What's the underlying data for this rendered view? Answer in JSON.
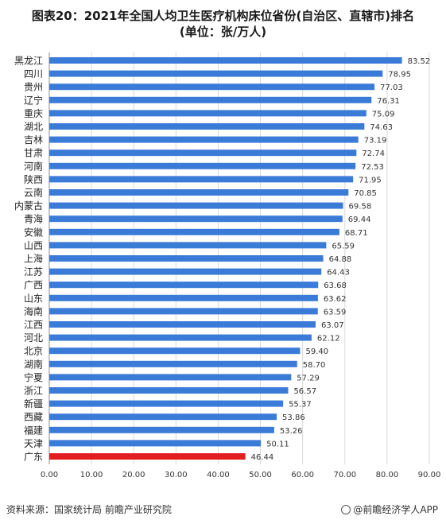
{
  "title_line1": "图表20：2021年全国人均卫生医疗机构床位省份(自治区、直辖市)排名",
  "title_line2": "(单位：张/万人)",
  "footer": {
    "source": "资料来源：国家统计局 前瞻产业研究院",
    "brand": "@前瞻经济学人APP"
  },
  "chart_data": {
    "type": "bar",
    "orientation": "horizontal",
    "title": "图表20：2021年全国人均卫生医疗机构床位省份(自治区、直辖市)排名",
    "subtitle": "(单位：张/万人)",
    "xlabel": "",
    "ylabel": "",
    "xlim": [
      0,
      90
    ],
    "x_ticks": [
      "0.00",
      "10.00",
      "20.00",
      "30.00",
      "40.00",
      "50.00",
      "60.00",
      "70.00",
      "80.00",
      "90.00"
    ],
    "grid": "vertical",
    "categories": [
      "黑龙江",
      "四川",
      "贵州",
      "辽宁",
      "重庆",
      "湖北",
      "吉林",
      "甘肃",
      "河南",
      "陕西",
      "云南",
      "内蒙古",
      "青海",
      "安徽",
      "山西",
      "上海",
      "江苏",
      "广西",
      "山东",
      "海南",
      "江西",
      "河北",
      "北京",
      "湖南",
      "宁夏",
      "浙江",
      "新疆",
      "西藏",
      "福建",
      "天津",
      "广东"
    ],
    "values": [
      83.52,
      78.95,
      77.03,
      76.31,
      75.09,
      74.63,
      73.19,
      72.74,
      72.53,
      71.95,
      70.85,
      69.58,
      69.44,
      68.71,
      65.59,
      64.88,
      64.43,
      63.68,
      63.62,
      63.59,
      63.07,
      62.12,
      59.4,
      58.7,
      57.29,
      56.57,
      55.37,
      53.86,
      53.26,
      50.11,
      46.44
    ],
    "value_labels": [
      "83.52",
      "78.95",
      "77.03",
      "76.31",
      "75.09",
      "74.63",
      "73.19",
      "72.74",
      "72.53",
      "71.95",
      "70.85",
      "69.58",
      "69.44",
      "68.71",
      "65.59",
      "64.88",
      "64.43",
      "63.68",
      "63.62",
      "63.59",
      "63.07",
      "62.12",
      "59.40",
      "58.70",
      "57.29",
      "56.57",
      "55.37",
      "53.86",
      "53.26",
      "50.11",
      "46.44"
    ],
    "colors": {
      "bar": "#3b7bd8",
      "highlight": "#e31e1e",
      "grid": "#d9d9d9",
      "axis": "#888888"
    },
    "highlight_index": 30
  }
}
